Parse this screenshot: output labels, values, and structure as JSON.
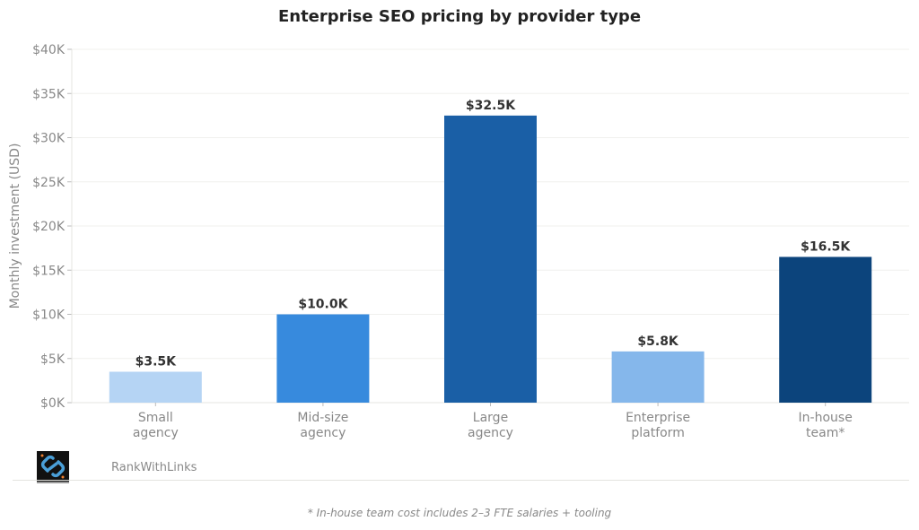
{
  "chart_data": {
    "type": "bar",
    "title": "Enterprise SEO pricing by provider type",
    "ylabel": "Monthly investment (USD)",
    "xlabel": "",
    "ylim": [
      0,
      40
    ],
    "yunit": "K USD",
    "yticks": [
      0,
      5,
      10,
      15,
      20,
      25,
      30,
      35,
      40
    ],
    "ytick_labels": [
      "$0K",
      "$5K",
      "$10K",
      "$15K",
      "$20K",
      "$25K",
      "$30K",
      "$35K",
      "$40K"
    ],
    "categories": [
      [
        "Small",
        "agency"
      ],
      [
        "Mid-size",
        "agency"
      ],
      [
        "Large",
        "agency"
      ],
      [
        "Enterprise",
        "platform"
      ],
      [
        "In-house",
        "team*"
      ]
    ],
    "values": [
      3.5,
      10.0,
      32.5,
      5.8,
      16.5
    ],
    "data_labels": [
      "$3.5K",
      "$10.0K",
      "$32.5K",
      "$5.8K",
      "$16.5K"
    ],
    "colors": [
      "#b5d4f4",
      "#378add",
      "#1a5fa6",
      "#85b7eb",
      "#0c447c"
    ],
    "grid": "horizontal"
  },
  "brand": {
    "name": "RankWithLinks",
    "logo_icon": "chain-link-icon"
  },
  "footnote": "* In-house team cost includes 2–3 FTE salaries + tooling"
}
